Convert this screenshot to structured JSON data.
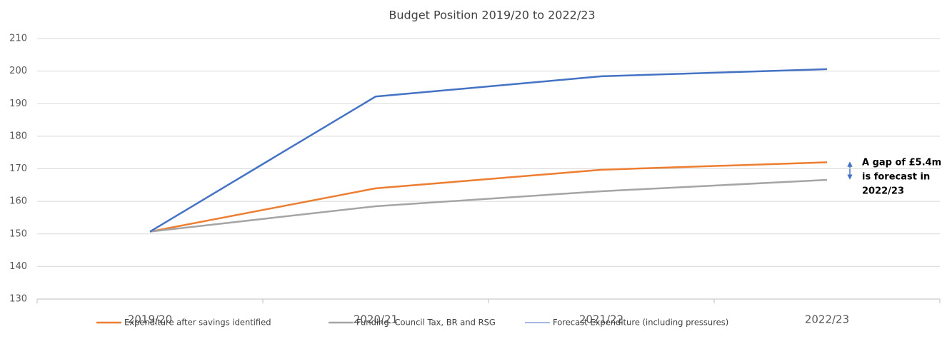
{
  "chart_data": {
    "type": "line",
    "title": "Budget Position 2019/20 to 2022/23",
    "categories": [
      "2019/20",
      "2020/21",
      "2021/22",
      "2022/23"
    ],
    "series": [
      {
        "name": "Expenditure after savings identified",
        "color": "#ed7d31",
        "values": [
          150.7,
          164.0,
          169.7,
          172.0
        ]
      },
      {
        "name": "Funding- Council Tax, BR and RSG",
        "color": "#a5a5a5",
        "values": [
          150.7,
          158.5,
          163.1,
          166.6
        ]
      },
      {
        "name": "Forecast Expenditure (including pressures)",
        "color": "#4472c4",
        "values": [
          150.7,
          192.2,
          198.4,
          200.6
        ]
      }
    ],
    "ylim": [
      130,
      210
    ],
    "yticks": [
      130,
      140,
      150,
      160,
      170,
      180,
      190,
      200,
      210
    ],
    "grid": true,
    "annotation": [
      "A gap of £5.4m",
      "is forecast in",
      "2022/23"
    ],
    "legend": "bottom"
  }
}
